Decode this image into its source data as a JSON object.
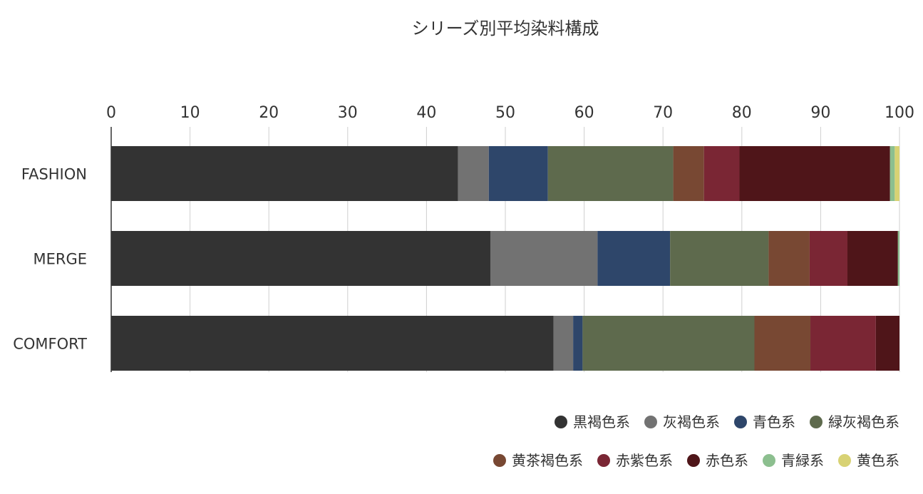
{
  "chart_data": {
    "type": "bar",
    "orientation": "horizontal",
    "stacked": true,
    "title": "シリーズ別平均染料構成",
    "xlabel": "",
    "ylabel": "",
    "xlim": [
      0,
      100
    ],
    "x_ticks": [
      0,
      10,
      20,
      30,
      40,
      50,
      60,
      70,
      80,
      90,
      100
    ],
    "x_axis_position": "top",
    "grid": true,
    "legend_position": "bottom-right",
    "categories": [
      "FASHION",
      "MERGE",
      "COMFORT"
    ],
    "series": [
      {
        "name": "黒褐色系",
        "color": "#333333",
        "values": [
          44.0,
          48.1,
          56.1
        ]
      },
      {
        "name": "灰褐色系",
        "color": "#727272",
        "values": [
          3.9,
          13.6,
          2.5
        ]
      },
      {
        "name": "青色系",
        "color": "#2e466a",
        "values": [
          7.5,
          9.2,
          1.2
        ]
      },
      {
        "name": "緑灰褐色系",
        "color": "#5e6a4d",
        "values": [
          15.9,
          12.5,
          21.8
        ]
      },
      {
        "name": "黄茶褐色系",
        "color": "#784833",
        "values": [
          3.9,
          5.2,
          7.1
        ]
      },
      {
        "name": "赤紫色系",
        "color": "#7a2634",
        "values": [
          4.5,
          4.8,
          8.3
        ]
      },
      {
        "name": "赤色系",
        "color": "#4f1519",
        "values": [
          19.1,
          6.4,
          3.0
        ]
      },
      {
        "name": "青緑系",
        "color": "#8cbf8f",
        "values": [
          0.6,
          0.2,
          0.0
        ]
      },
      {
        "name": "黄色系",
        "color": "#d8d274",
        "values": [
          0.6,
          0.0,
          0.0
        ]
      }
    ]
  }
}
